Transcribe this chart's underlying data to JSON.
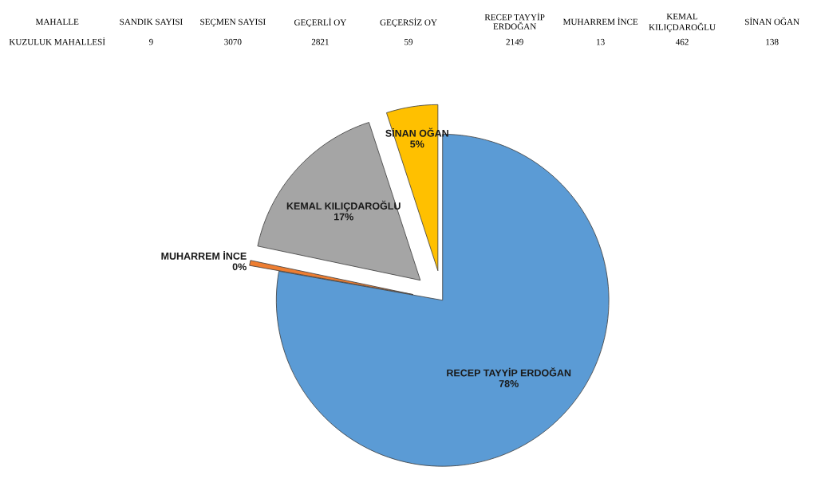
{
  "chart_data": {
    "type": "pie",
    "categories": [
      "RECEP TAYYİP ERDOĞAN",
      "MUHARREM İNCE",
      "KEMAL KILIÇDAROĞLU",
      "SİNAN OĞAN"
    ],
    "values": [
      77.8,
      0.5,
      16.7,
      5.0
    ],
    "colors": [
      "#5b9bd5",
      "#ed7d31",
      "#a5a5a5",
      "#ffc000"
    ],
    "value_labels": [
      "78%",
      "0%",
      "17%",
      "5%"
    ],
    "annotations": [
      "MAHALLE",
      "SANDIK SAYISI",
      "SEÇMEN SAYISI",
      "GEÇERLİ OY",
      "GEÇERSİZ OY",
      "RECEP TAYYİP\nERDOĞAN",
      "MUHARREM İNCE",
      "KEMAL\nKILIÇDAROĞLU",
      "SİNAN OĞAN",
      "KUZULUK MAHALLESİ",
      "9",
      "3070",
      "2821",
      "59",
      "2149",
      "13",
      "462",
      "138"
    ],
    "legend": false
  }
}
